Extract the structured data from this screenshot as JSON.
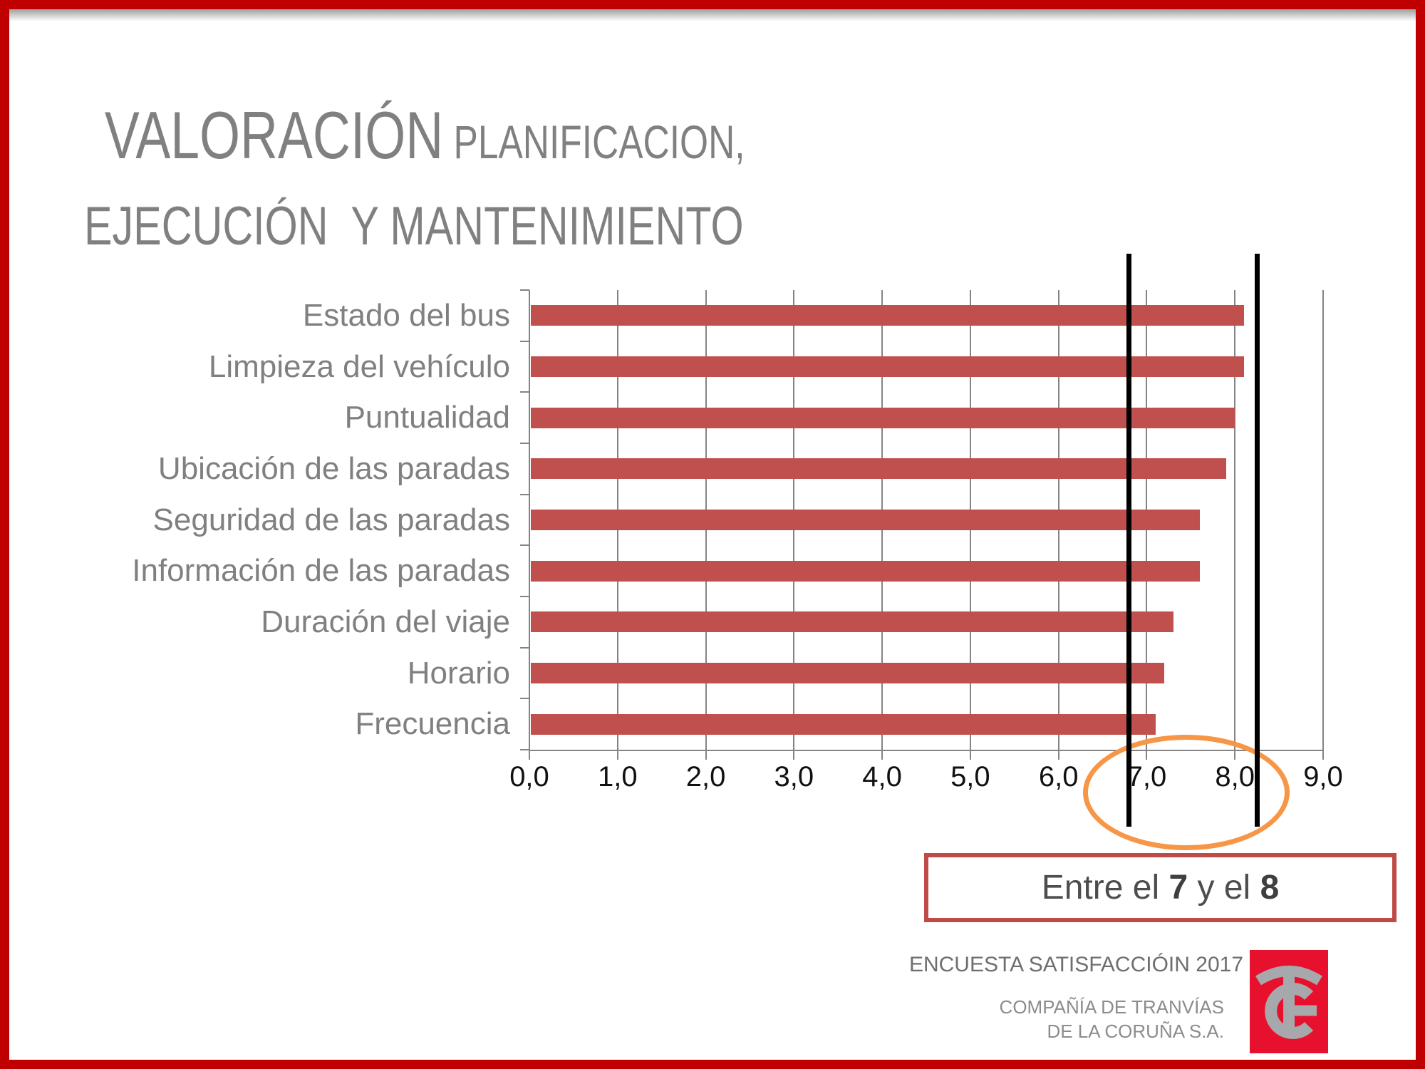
{
  "slide": {
    "title": {
      "line1_large": "VALORACIÓN",
      "line1_small": " PLANIFICACION,",
      "line2": "EJECUCIÓN  Y MANTENIMIENTO"
    }
  },
  "chart_data": {
    "type": "bar",
    "orientation": "horizontal",
    "title": "",
    "xlabel": "",
    "ylabel": "",
    "categories": [
      "Estado del bus",
      "Limpieza del vehículo",
      "Puntualidad",
      "Ubicación de las paradas",
      "Seguridad de las paradas",
      "Información de las paradas",
      "Duración del viaje",
      "Horario",
      "Frecuencia"
    ],
    "values": [
      8.1,
      8.1,
      8.0,
      7.9,
      7.6,
      7.6,
      7.3,
      7.2,
      7.1
    ],
    "xlim": [
      0,
      9
    ],
    "xticks": [
      "0,0",
      "1,0",
      "2,0",
      "3,0",
      "4,0",
      "5,0",
      "6,0",
      "7,0",
      "8,0",
      "9,0"
    ],
    "xtick_values": [
      0,
      1,
      2,
      3,
      4,
      5,
      6,
      7,
      8,
      9
    ],
    "grid": true,
    "legend": false,
    "bar_color": "#C0504D",
    "gridline_color": "#848484",
    "annotations": {
      "vline_values": [
        6.8,
        8.25
      ],
      "vline_color": "#000000",
      "ellipse_center_value": 7.45,
      "ellipse_color": "#F79646"
    }
  },
  "callout": {
    "prefix": "Entre el ",
    "bold1": "7",
    "middle": " y el ",
    "bold2": "8"
  },
  "footer": {
    "line1": "ENCUESTA SATISFACCIÓIN 2017",
    "line2": "COMPAÑÍA DE TRANVÍAS",
    "line3": "DE LA CORUÑA S.A."
  },
  "logo": {
    "name": "Compañía de Tranvías logo",
    "bg_color": "#E8112D",
    "fg_color": "#A6A8AB"
  },
  "colors": {
    "slide_border": "#C00000",
    "title_text": "#808080",
    "category_text": "#808080",
    "axis_text": "#111111",
    "callout_border": "#BE4B48",
    "callout_text": "#4d4d4d"
  }
}
